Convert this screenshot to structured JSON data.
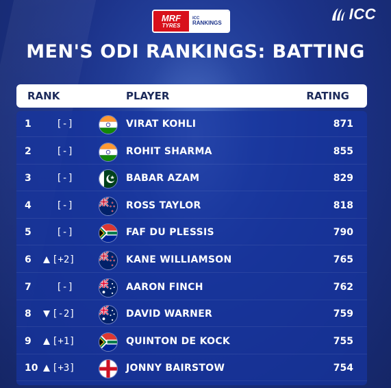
{
  "brand": {
    "icc": "ICC",
    "sponsor_line1": "MRF",
    "sponsor_line2": "TYRES",
    "badge_line1": "ICC",
    "badge_line2": "RANKINGS"
  },
  "title": "MEN'S ODI RANKINGS: BATTING",
  "headers": {
    "rank": "RANK",
    "player": "PLAYER",
    "rating": "RATING"
  },
  "colors": {
    "background": "#1c338a",
    "sponsor_red": "#d8111b",
    "header_bg": "#ffffff"
  },
  "rows": [
    {
      "rank": "1",
      "move": "[-]",
      "trend": "none",
      "flag": "india",
      "player": "VIRAT KOHLI",
      "rating": "871"
    },
    {
      "rank": "2",
      "move": "[-]",
      "trend": "none",
      "flag": "india",
      "player": "ROHIT SHARMA",
      "rating": "855"
    },
    {
      "rank": "3",
      "move": "[-]",
      "trend": "none",
      "flag": "pakistan",
      "player": "BABAR AZAM",
      "rating": "829"
    },
    {
      "rank": "4",
      "move": "[-]",
      "trend": "none",
      "flag": "new-zealand",
      "player": "ROSS TAYLOR",
      "rating": "818"
    },
    {
      "rank": "5",
      "move": "[-]",
      "trend": "none",
      "flag": "south-africa",
      "player": "FAF DU PLESSIS",
      "rating": "790"
    },
    {
      "rank": "6",
      "move": "[+2]",
      "trend": "up",
      "flag": "new-zealand",
      "player": "KANE WILLIAMSON",
      "rating": "765"
    },
    {
      "rank": "7",
      "move": "[-]",
      "trend": "none",
      "flag": "australia",
      "player": "AARON FINCH",
      "rating": "762"
    },
    {
      "rank": "8",
      "move": "[-2]",
      "trend": "down",
      "flag": "australia",
      "player": "DAVID WARNER",
      "rating": "759"
    },
    {
      "rank": "9",
      "move": "[+1]",
      "trend": "up",
      "flag": "south-africa",
      "player": "QUINTON DE KOCK",
      "rating": "755"
    },
    {
      "rank": "10",
      "move": "[+3]",
      "trend": "up",
      "flag": "england",
      "player": "JONNY BAIRSTOW",
      "rating": "754"
    }
  ]
}
